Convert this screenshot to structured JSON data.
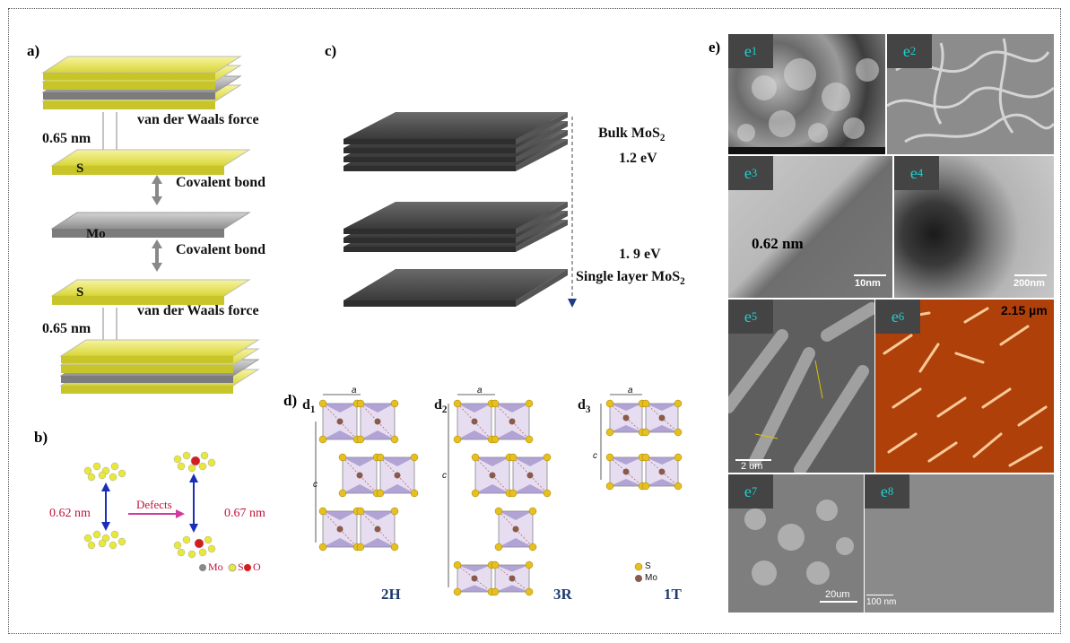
{
  "panels": {
    "a": {
      "label": "a)",
      "vdw_top": "van der Waals force",
      "vdw_bottom": "van der Waals force",
      "dist_top": "0.65 nm",
      "dist_bottom": "0.65 nm",
      "s_top": "S",
      "s_bottom": "S",
      "mo": "Mo",
      "covalent_1": "Covalent bond",
      "covalent_2": "Covalent bond"
    },
    "b": {
      "label": "b)",
      "dist_left": "0.62 nm",
      "dist_right": "0.67 nm",
      "defects": "Defects",
      "legend_mo": "Mo",
      "legend_s": "S",
      "legend_o": "O"
    },
    "c": {
      "label": "c)",
      "bulk": "Bulk MoS",
      "bulk_sub": "2",
      "bulk_gap": "1.2 eV",
      "single_gap": "1. 9 eV",
      "single": "Single layer MoS",
      "single_sub": "2"
    },
    "d": {
      "label": "d)",
      "d1": "d",
      "d1_sub": "1",
      "d2": "d",
      "d2_sub": "2",
      "d3": "d",
      "d3_sub": "3",
      "axis_a": "a",
      "axis_c": "c",
      "phase_2h": "2H",
      "phase_3r": "3R",
      "phase_1t": "1T",
      "legend_s": "S",
      "legend_mo": "Mo"
    },
    "e": {
      "label": "e)",
      "tiles": [
        {
          "tag": "e",
          "sub": "1",
          "scale": ""
        },
        {
          "tag": "e",
          "sub": "2",
          "scale": ""
        },
        {
          "tag": "e",
          "sub": "3",
          "scale": "10nm",
          "note": "0.62 nm"
        },
        {
          "tag": "e",
          "sub": "4",
          "scale": "200nm"
        },
        {
          "tag": "e",
          "sub": "5",
          "scale": "2 um"
        },
        {
          "tag": "e",
          "sub": "6",
          "scale": "",
          "note": "2.15 µm"
        },
        {
          "tag": "e",
          "sub": "7",
          "scale": "20um"
        },
        {
          "tag": "e",
          "sub": "8",
          "scale": "100 nm"
        }
      ]
    }
  },
  "colors": {
    "sulfur_layer": "#f0ef7a",
    "mo_layer": "#a9a9a9",
    "stack_dark": "#4a4a4a",
    "red_text": "#c0143c",
    "blue_arrow": "#1a2fb8",
    "phase_label": "#1e3a6e",
    "tag_text": "#1fd1d1"
  }
}
